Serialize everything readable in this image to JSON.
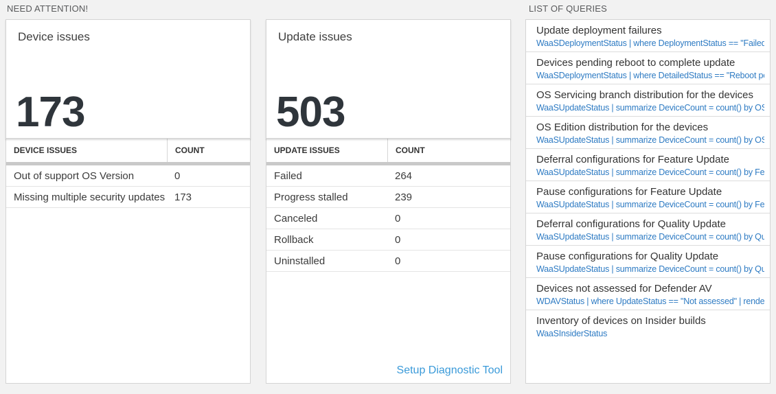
{
  "sections": {
    "need_attention": "NEED ATTENTION!",
    "list_of_queries": "LIST OF QUERIES"
  },
  "device_card": {
    "title": "Device issues",
    "count": "173"
  },
  "device_table": {
    "headers": [
      "DEVICE ISSUES",
      "COUNT"
    ],
    "rows": [
      {
        "label": "Out of support OS Version",
        "count": "0"
      },
      {
        "label": "Missing multiple security updates",
        "count": "173"
      }
    ]
  },
  "update_card": {
    "title": "Update issues",
    "count": "503"
  },
  "update_table": {
    "headers": [
      "UPDATE ISSUES",
      "COUNT"
    ],
    "rows": [
      {
        "label": "Failed",
        "count": "264"
      },
      {
        "label": "Progress stalled",
        "count": "239"
      },
      {
        "label": "Canceled",
        "count": "0"
      },
      {
        "label": "Rollback",
        "count": "0"
      },
      {
        "label": "Uninstalled",
        "count": "0"
      }
    ],
    "footer_link": "Setup Diagnostic Tool"
  },
  "queries": [
    {
      "title": "Update deployment failures",
      "query": "WaaSDeploymentStatus | where DeploymentStatus == \"Failed\" |..."
    },
    {
      "title": "Devices pending reboot to complete update",
      "query": "WaaSDeploymentStatus | where DetailedStatus == \"Reboot pend..."
    },
    {
      "title": "OS Servicing branch distribution for the devices",
      "query": "WaaSUpdateStatus | summarize DeviceCount = count() by OSSer..."
    },
    {
      "title": "OS Edition distribution for the devices",
      "query": "WaaSUpdateStatus | summarize DeviceCount = count() by OSEdit..."
    },
    {
      "title": "Deferral configurations for Feature Update",
      "query": "WaaSUpdateStatus | summarize DeviceCount = count() by Featur..."
    },
    {
      "title": "Pause configurations for Feature Update",
      "query": "WaaSUpdateStatus | summarize DeviceCount = count() by Featur..."
    },
    {
      "title": "Deferral configurations for Quality Update",
      "query": "WaaSUpdateStatus | summarize DeviceCount = count() by Qualit..."
    },
    {
      "title": "Pause configurations for Quality Update",
      "query": "WaaSUpdateStatus | summarize DeviceCount = count() by Qualit..."
    },
    {
      "title": "Devices not assessed for Defender AV",
      "query": "WDAVStatus | where UpdateStatus == \"Not assessed\" | render ta..."
    },
    {
      "title": "Inventory of devices on Insider builds",
      "query": "WaaSInsiderStatus"
    }
  ],
  "colors": {
    "background": "#f2f2f2",
    "panel_border": "#d4d4d4",
    "section_label": "#58595b",
    "big_number": "#2f353b",
    "query_link_blue": "#2e7bc3",
    "setup_link_blue": "#3a9ad9",
    "thick_divider": "#c9c9c9"
  }
}
